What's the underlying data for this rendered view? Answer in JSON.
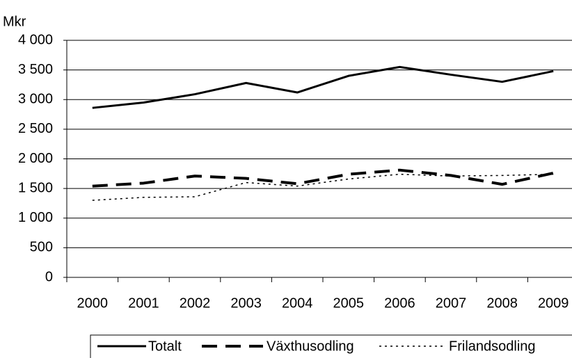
{
  "chart_data": {
    "type": "line",
    "y_label": "Mkr",
    "categories": [
      "2000",
      "2001",
      "2002",
      "2003",
      "2004",
      "2005",
      "2006",
      "2007",
      "2008",
      "2009"
    ],
    "series": [
      {
        "name": "Totalt",
        "color": "#000000",
        "dash": "solid",
        "values": [
          2860,
          2950,
          3090,
          3280,
          3120,
          3400,
          3550,
          3420,
          3300,
          3480
        ]
      },
      {
        "name": "Växthusodling",
        "color": "#000000",
        "dash": "dashed",
        "values": [
          1540,
          1590,
          1710,
          1670,
          1580,
          1740,
          1810,
          1720,
          1570,
          1760
        ]
      },
      {
        "name": "Frilandsodling",
        "color": "#000000",
        "dash": "dotted",
        "values": [
          1300,
          1350,
          1360,
          1600,
          1540,
          1660,
          1740,
          1710,
          1720,
          1740
        ]
      }
    ],
    "ylim": [
      0,
      4000
    ],
    "yticks": [
      0,
      500,
      {
        "value": 1000,
        "label": "1 000"
      },
      {
        "value": 1500,
        "label": "1 500"
      },
      {
        "value": 2000,
        "label": "2 000"
      },
      {
        "value": 2500,
        "label": "2 500"
      },
      {
        "value": 3000,
        "label": "3 000"
      },
      {
        "value": 3500,
        "label": "3 500"
      },
      {
        "value": 4000,
        "label": "4 000"
      }
    ],
    "grid": true,
    "legend": "bottom"
  }
}
